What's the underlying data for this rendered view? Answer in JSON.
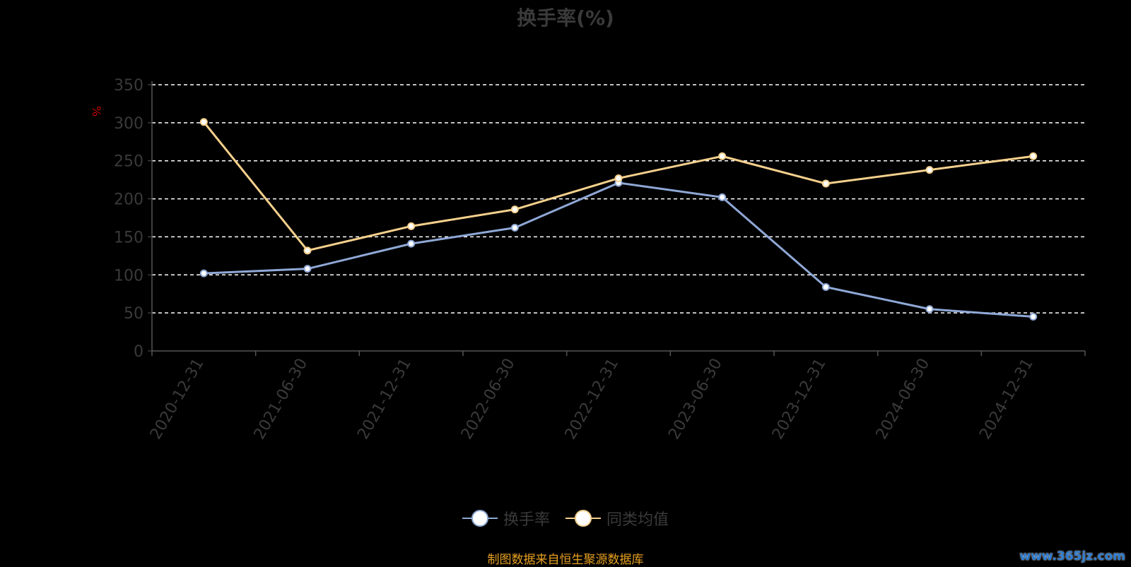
{
  "chart_data": {
    "type": "line",
    "title": "换手率(%)",
    "ylabel": "%",
    "ylim": [
      0,
      350
    ],
    "yticks": [
      0,
      50,
      100,
      150,
      200,
      250,
      300,
      350
    ],
    "grid": true,
    "legend_position": "bottom-center",
    "categories": [
      "2020-12-31",
      "2021-06-30",
      "2021-12-31",
      "2022-06-30",
      "2022-12-31",
      "2023-06-30",
      "2023-12-31",
      "2024-06-30",
      "2024-12-31"
    ],
    "series": [
      {
        "name": "换手率",
        "color": "#8fa8d6",
        "values": [
          102,
          108,
          141,
          162,
          221,
          202,
          84,
          55,
          45
        ]
      },
      {
        "name": "同类均值",
        "color": "#f4d08c",
        "values": [
          301,
          132,
          164,
          186,
          227,
          256,
          220,
          238,
          256
        ]
      }
    ]
  },
  "source_note": "制图数据来自恒生聚源数据库",
  "watermark": "www.365jz.com"
}
